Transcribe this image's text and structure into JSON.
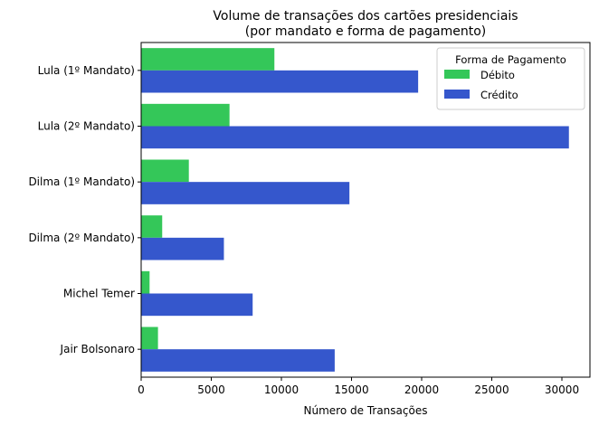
{
  "chart_data": {
    "type": "bar",
    "orientation": "horizontal",
    "title_lines": [
      "Volume de transações dos cartões presidenciais",
      "(por mandato e forma de pagamento)"
    ],
    "xlabel": "Número de Transações",
    "ylabel": "",
    "xlim": [
      0,
      32000
    ],
    "x_ticks": [
      "0",
      "5000",
      "10000",
      "15000",
      "20000",
      "25000",
      "30000"
    ],
    "x_tick_values": [
      0,
      5000,
      10000,
      15000,
      20000,
      25000,
      30000
    ],
    "categories": [
      "Lula (1º Mandato)",
      "Lula (2º Mandato)",
      "Dilma (1º Mandato)",
      "Dilma (2º Mandato)",
      "Michel Temer",
      "Jair Bolsonaro"
    ],
    "series": [
      {
        "name": "Débito",
        "color": "#34c759",
        "values": [
          9500,
          6300,
          3400,
          1500,
          600,
          1200
        ]
      },
      {
        "name": "Crédito",
        "color": "#3557cc",
        "values": [
          19750,
          30500,
          14850,
          5900,
          7950,
          13800
        ]
      }
    ],
    "legend": {
      "title": "Forma de Pagamento",
      "placement": "top-right"
    },
    "grid": false
  }
}
